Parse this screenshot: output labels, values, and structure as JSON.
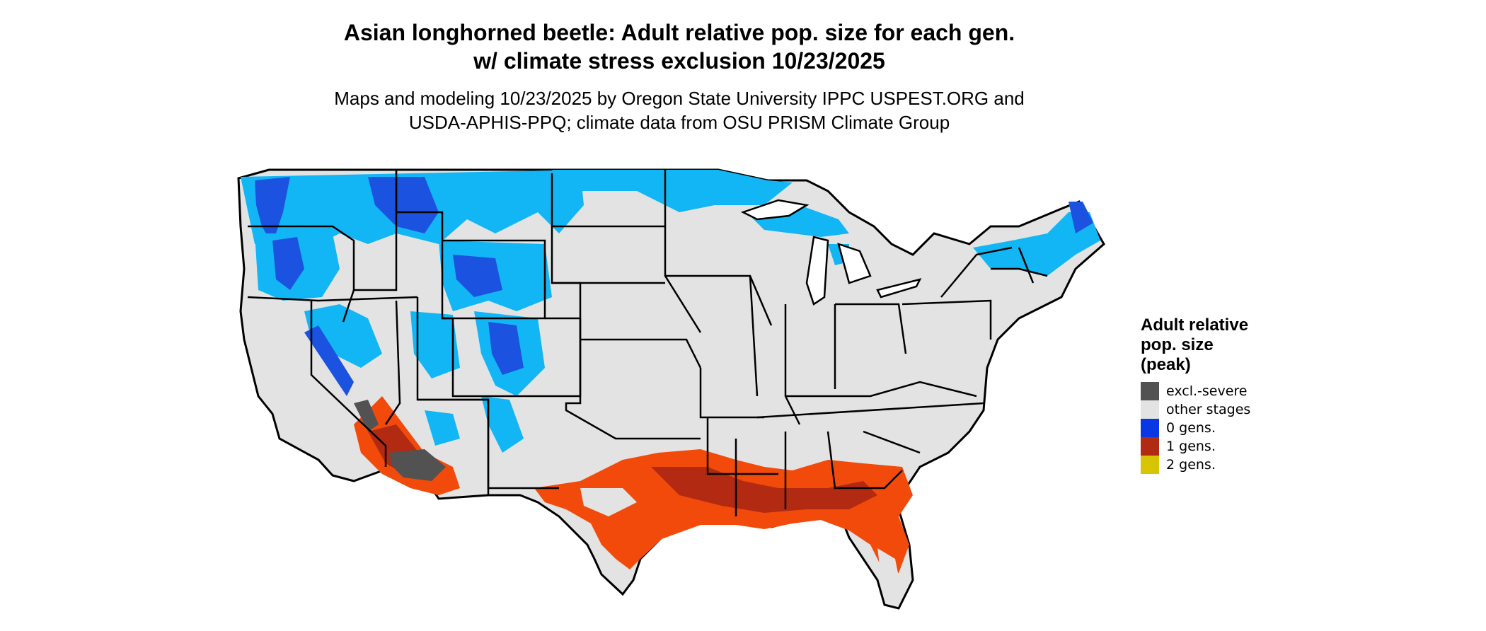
{
  "title": {
    "line1": "Asian longhorned beetle: Adult relative pop. size for each gen.",
    "line2": "w/ climate stress exclusion 10/23/2025"
  },
  "subtitle": {
    "line1": "Maps and modeling 10/23/2025 by Oregon State University IPPC USPEST.ORG and",
    "line2": "USDA-APHIS-PPQ; climate data from OSU PRISM Climate Group"
  },
  "legend": {
    "title_lines": [
      "Adult relative",
      "pop. size",
      "(peak)"
    ],
    "items": [
      {
        "label": "excl.-severe",
        "color": "#525252"
      },
      {
        "label": "other stages",
        "color": "#e3e3e3"
      },
      {
        "label": "0 gens.",
        "color": "#0a37e6"
      },
      {
        "label": "1 gens.",
        "color": "#b22a12"
      },
      {
        "label": "2 gens.",
        "color": "#d7c504"
      }
    ]
  },
  "colors": {
    "land": "#e3e3e3",
    "light_blue": "#12b6f5",
    "blue": "#1b53e0",
    "orange": "#f24a0b",
    "dark_red": "#b22a12",
    "excl_severe": "#525252",
    "border": "#000000"
  }
}
